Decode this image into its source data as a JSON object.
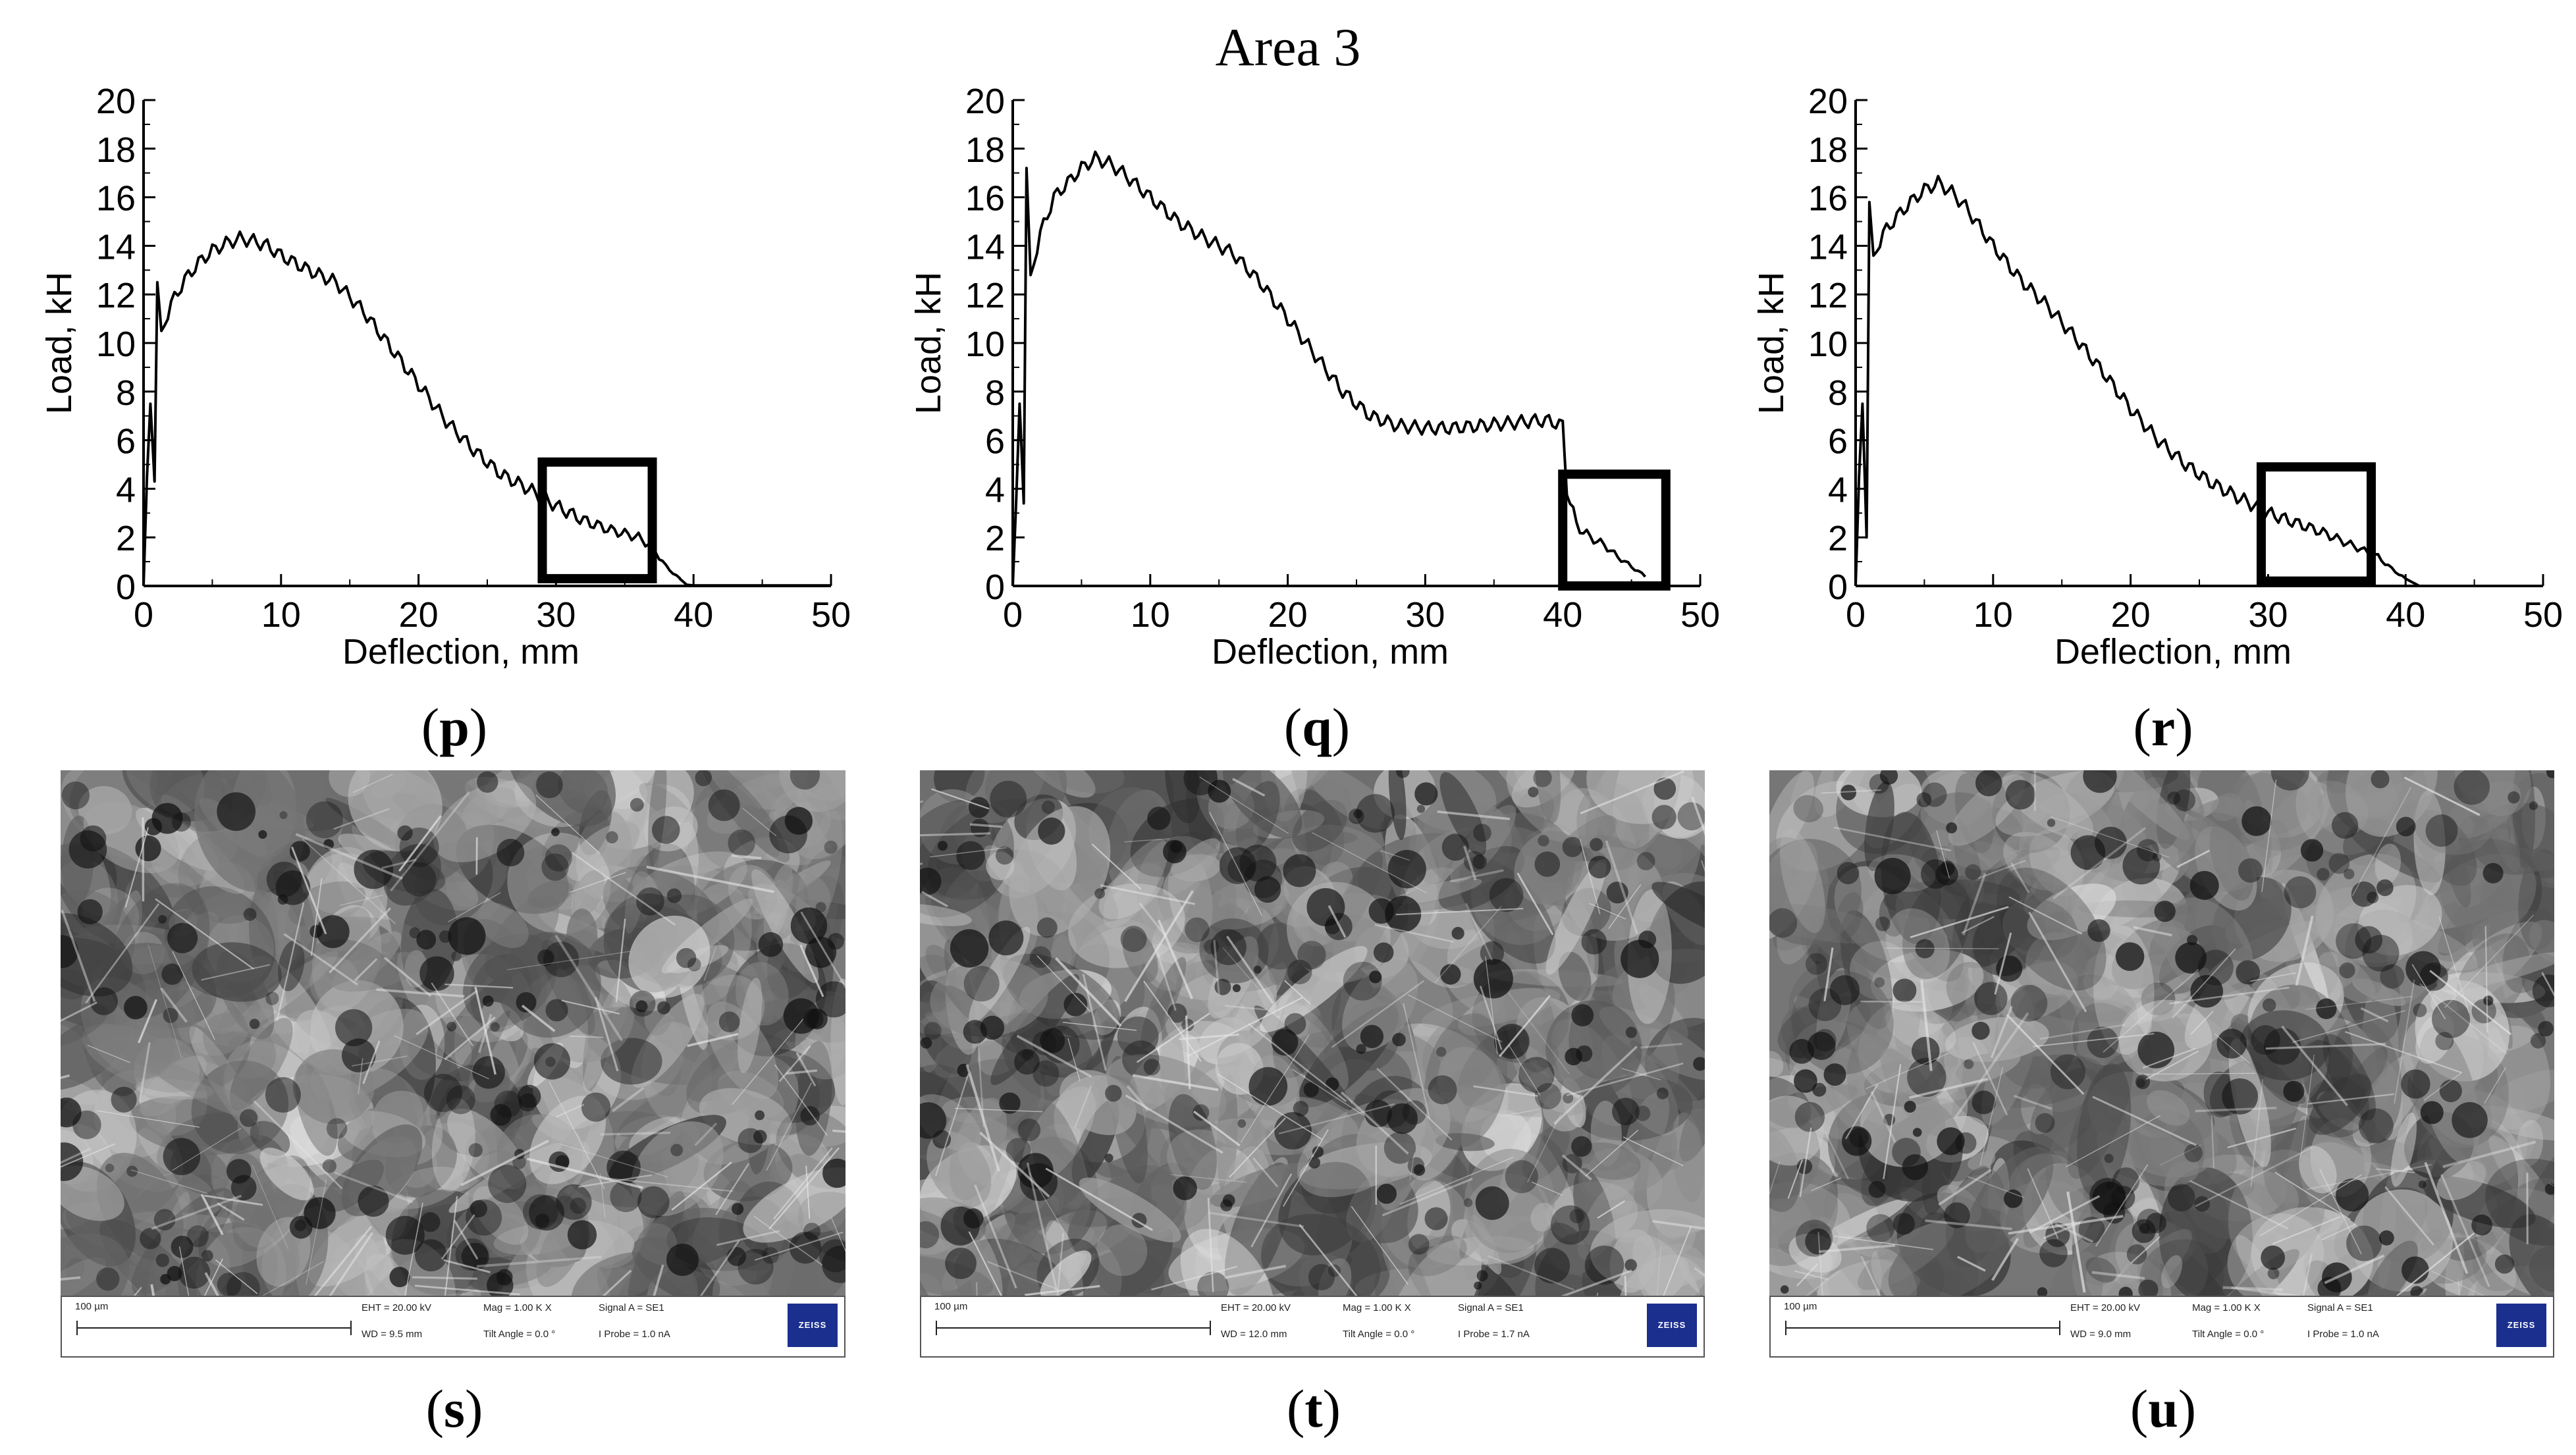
{
  "figure": {
    "title": "Area 3"
  },
  "chart_data": [
    {
      "panel": "p",
      "type": "line",
      "xlabel": "Deflection, mm",
      "ylabel": "Load, kH",
      "xlim": [
        0,
        50
      ],
      "ylim": [
        0,
        20
      ],
      "xticks": [
        0,
        10,
        20,
        30,
        40,
        50
      ],
      "yticks": [
        0,
        2,
        4,
        6,
        8,
        10,
        12,
        14,
        16,
        18,
        20
      ],
      "grid": false,
      "highlight_box": {
        "x": [
          29,
          37
        ],
        "y": [
          0.3,
          5.1
        ]
      },
      "series": [
        {
          "x": [
            0,
            0.25,
            0.5,
            0.8,
            1,
            1.3,
            2,
            3,
            4,
            5,
            6,
            7,
            8,
            9,
            10,
            12,
            14,
            16,
            18,
            20,
            22,
            24,
            26,
            28,
            30,
            32,
            34,
            36,
            37,
            38,
            39,
            39.5,
            40,
            45,
            50
          ],
          "y": [
            0,
            4.5,
            7.5,
            4.3,
            12.5,
            10.5,
            11.6,
            12.6,
            13.3,
            13.8,
            14.1,
            14.3,
            14.2,
            14.0,
            13.6,
            13.0,
            12.5,
            11.3,
            9.8,
            8.3,
            6.8,
            5.6,
            4.6,
            4.0,
            3.3,
            2.7,
            2.3,
            2.0,
            1.6,
            0.8,
            0.3,
            0.05,
            0.02,
            0.02,
            0.02
          ]
        }
      ]
    },
    {
      "panel": "q",
      "type": "line",
      "xlabel": "Deflection, mm",
      "ylabel": "Load, kH",
      "xlim": [
        0,
        50
      ],
      "ylim": [
        0,
        20
      ],
      "xticks": [
        0,
        10,
        20,
        30,
        40,
        50
      ],
      "yticks": [
        0,
        2,
        4,
        6,
        8,
        10,
        12,
        14,
        16,
        18,
        20
      ],
      "grid": false,
      "highlight_box": {
        "x": [
          40,
          47.5
        ],
        "y": [
          0,
          4.6
        ]
      },
      "series": [
        {
          "x": [
            0,
            0.25,
            0.5,
            0.8,
            1,
            1.3,
            2,
            3,
            4,
            5,
            6,
            7,
            8,
            10,
            12,
            14,
            16,
            18,
            20,
            22,
            24,
            26,
            28,
            30,
            32,
            34,
            36,
            38,
            39,
            40,
            40.3,
            41,
            42,
            43,
            44,
            45,
            46
          ],
          "y": [
            0,
            3.5,
            7.5,
            3.4,
            17.2,
            12.8,
            14.5,
            16.0,
            16.6,
            17.2,
            17.6,
            17.4,
            17.0,
            16.0,
            15.0,
            14.3,
            13.7,
            12.5,
            11.0,
            9.5,
            8.0,
            7.0,
            6.6,
            6.5,
            6.5,
            6.6,
            6.7,
            6.8,
            6.8,
            6.6,
            4.0,
            2.5,
            2.0,
            1.7,
            1.2,
            0.8,
            0.4
          ]
        }
      ]
    },
    {
      "panel": "r",
      "type": "line",
      "xlabel": "Deflection, mm",
      "ylabel": "Load, kH",
      "xlim": [
        0,
        50
      ],
      "ylim": [
        0,
        20
      ],
      "xticks": [
        0,
        10,
        20,
        30,
        40,
        50
      ],
      "yticks": [
        0,
        2,
        4,
        6,
        8,
        10,
        12,
        14,
        16,
        18,
        20
      ],
      "grid": false,
      "highlight_box": {
        "x": [
          29.5,
          37.5
        ],
        "y": [
          0.2,
          4.9
        ]
      },
      "series": [
        {
          "x": [
            0,
            0.25,
            0.5,
            0.8,
            1,
            1.3,
            2,
            3,
            4,
            5,
            6,
            7,
            8,
            10,
            12,
            14,
            16,
            18,
            20,
            22,
            24,
            26,
            28,
            30,
            32,
            34,
            36,
            38,
            39,
            40,
            41
          ],
          "y": [
            0,
            4.5,
            7.5,
            2.0,
            15.8,
            13.6,
            14.5,
            15.2,
            15.8,
            16.3,
            16.6,
            16.2,
            15.6,
            14.0,
            12.6,
            11.5,
            10.2,
            8.8,
            7.3,
            6.0,
            5.0,
            4.2,
            3.6,
            3.0,
            2.6,
            2.2,
            1.7,
            1.2,
            0.7,
            0.3,
            0.0
          ]
        }
      ]
    }
  ],
  "panels": {
    "p": "p",
    "q": "q",
    "r": "r",
    "s": "s",
    "t": "t",
    "u": "u"
  },
  "sem_images": [
    {
      "panel": "s",
      "scale_label": "100 µm",
      "params": {
        "eht": "EHT = 20.00 kV",
        "mag": "Mag =  1.00 K X",
        "signal": "Signal A = SE1",
        "wd": "WD =  9.5 mm",
        "tilt": "Tilt Angle =  0.0 °",
        "probe": "I Probe =   1.0 nA"
      },
      "logo": "ZEISS",
      "tone": "#7a7a7a"
    },
    {
      "panel": "t",
      "scale_label": "100 µm",
      "params": {
        "eht": "EHT = 20.00 kV",
        "mag": "Mag =  1.00 K X",
        "signal": "Signal A = SE1",
        "wd": "WD = 12.0 mm",
        "tilt": "Tilt Angle =  0.0 °",
        "probe": "I Probe =   1.7 nA"
      },
      "logo": "ZEISS",
      "tone": "#6e6e6e"
    },
    {
      "panel": "u",
      "scale_label": "100 µm",
      "params": {
        "eht": "EHT = 20.00 kV",
        "mag": "Mag =  1.00 K X",
        "signal": "Signal A = SE1",
        "wd": "WD =  9.0 mm",
        "tilt": "Tilt Angle =  0.0 °",
        "probe": "I Probe =   1.0 nA"
      },
      "logo": "ZEISS",
      "tone": "#767676"
    }
  ]
}
